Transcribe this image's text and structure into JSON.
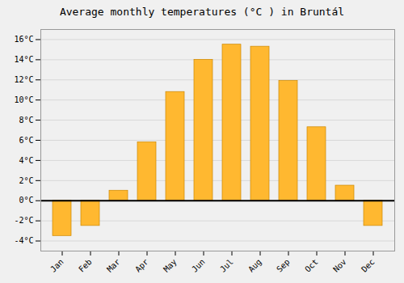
{
  "chart_data": {
    "type": "bar",
    "title": "Average monthly temperatures (°C ) in Bruntál",
    "categories": [
      "Jan",
      "Feb",
      "Mar",
      "Apr",
      "May",
      "Jun",
      "Jul",
      "Aug",
      "Sep",
      "Oct",
      "Nov",
      "Dec"
    ],
    "values": [
      -3.5,
      -2.5,
      1.0,
      5.8,
      10.8,
      14.0,
      15.5,
      15.3,
      11.9,
      7.3,
      1.5,
      -2.5
    ],
    "color": "#FFB830",
    "ylim": [
      -5,
      17
    ],
    "yticks": [
      {
        "value": -4,
        "label": "-4°C"
      },
      {
        "value": -2,
        "label": "-2°C"
      },
      {
        "value": 0,
        "label": "0°C"
      },
      {
        "value": 2,
        "label": "2°C"
      },
      {
        "value": 4,
        "label": "4°C"
      },
      {
        "value": 6,
        "label": "6°C"
      },
      {
        "value": 8,
        "label": "8°C"
      },
      {
        "value": 10,
        "label": "10°C"
      },
      {
        "value": 12,
        "label": "12°C"
      },
      {
        "value": 14,
        "label": "14°C"
      },
      {
        "value": 16,
        "label": "16°C"
      }
    ],
    "grid": true
  }
}
